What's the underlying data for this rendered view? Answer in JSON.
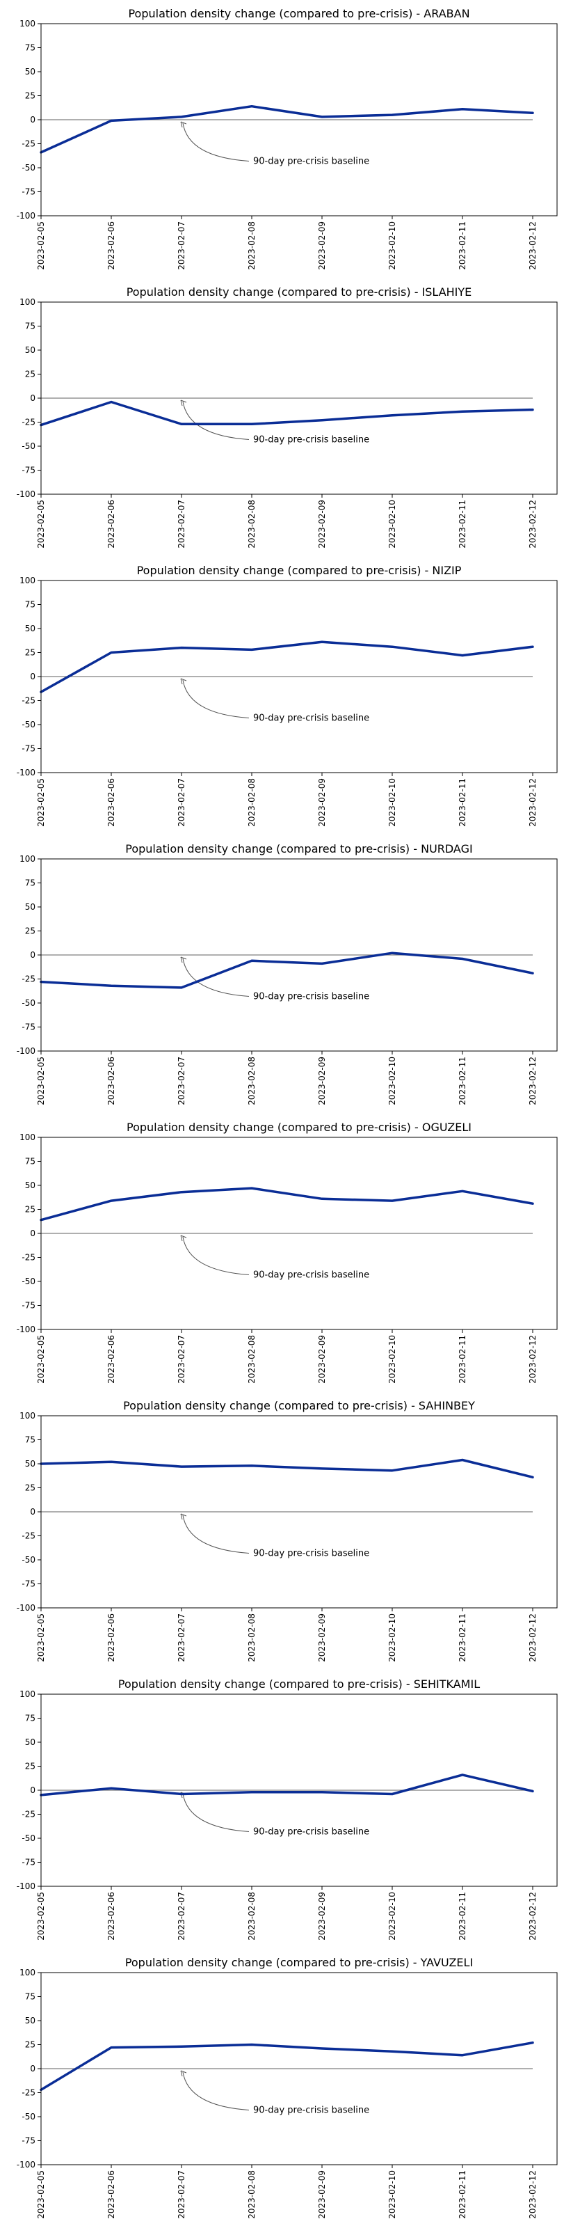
{
  "chart_data": [
    {
      "type": "line",
      "title": "Population density change (compared to pre-crisis) - ARABAN",
      "x": [
        "2023-02-05",
        "2023-02-06",
        "2023-02-07",
        "2023-02-08",
        "2023-02-09",
        "2023-02-10",
        "2023-02-11",
        "2023-02-12"
      ],
      "series": [
        {
          "values": [
            -34,
            -1,
            3,
            14,
            3,
            5,
            11,
            7
          ]
        }
      ],
      "ylim": [
        -100,
        100
      ],
      "yticks": [
        100,
        75,
        50,
        25,
        0,
        -25,
        -50,
        -75,
        -100
      ],
      "baseline": 0,
      "annotation": "90-day pre-crisis baseline",
      "annotation_x": "2023-02-07",
      "line_color": "#0a2d96"
    },
    {
      "type": "line",
      "title": "Population density change (compared to pre-crisis) - ISLAHIYE",
      "x": [
        "2023-02-05",
        "2023-02-06",
        "2023-02-07",
        "2023-02-08",
        "2023-02-09",
        "2023-02-10",
        "2023-02-11",
        "2023-02-12"
      ],
      "series": [
        {
          "values": [
            -28,
            -4,
            -27,
            -27,
            -23,
            -18,
            -14,
            -12
          ]
        }
      ],
      "ylim": [
        -100,
        100
      ],
      "yticks": [
        100,
        75,
        50,
        25,
        0,
        -25,
        -50,
        -75,
        -100
      ],
      "baseline": 0,
      "annotation": "90-day pre-crisis baseline",
      "annotation_x": "2023-02-07",
      "line_color": "#0a2d96"
    },
    {
      "type": "line",
      "title": "Population density change (compared to pre-crisis) - NIZIP",
      "x": [
        "2023-02-05",
        "2023-02-06",
        "2023-02-07",
        "2023-02-08",
        "2023-02-09",
        "2023-02-10",
        "2023-02-11",
        "2023-02-12"
      ],
      "series": [
        {
          "values": [
            -16,
            25,
            30,
            28,
            36,
            31,
            22,
            31
          ]
        }
      ],
      "ylim": [
        -100,
        100
      ],
      "yticks": [
        100,
        75,
        50,
        25,
        0,
        -25,
        -50,
        -75,
        -100
      ],
      "baseline": 0,
      "annotation": "90-day pre-crisis baseline",
      "annotation_x": "2023-02-07",
      "line_color": "#0a2d96"
    },
    {
      "type": "line",
      "title": "Population density change (compared to pre-crisis) - NURDAGI",
      "x": [
        "2023-02-05",
        "2023-02-06",
        "2023-02-07",
        "2023-02-08",
        "2023-02-09",
        "2023-02-10",
        "2023-02-11",
        "2023-02-12"
      ],
      "series": [
        {
          "values": [
            -28,
            -32,
            -34,
            -6,
            -9,
            2,
            -4,
            -19
          ]
        }
      ],
      "ylim": [
        -100,
        100
      ],
      "yticks": [
        100,
        75,
        50,
        25,
        0,
        -25,
        -50,
        -75,
        -100
      ],
      "baseline": 0,
      "annotation": "90-day pre-crisis baseline",
      "annotation_x": "2023-02-07",
      "line_color": "#0a2d96"
    },
    {
      "type": "line",
      "title": "Population density change (compared to pre-crisis) - OGUZELI",
      "x": [
        "2023-02-05",
        "2023-02-06",
        "2023-02-07",
        "2023-02-08",
        "2023-02-09",
        "2023-02-10",
        "2023-02-11",
        "2023-02-12"
      ],
      "series": [
        {
          "values": [
            14,
            34,
            43,
            47,
            36,
            34,
            44,
            31
          ]
        }
      ],
      "ylim": [
        -100,
        100
      ],
      "yticks": [
        100,
        75,
        50,
        25,
        0,
        -25,
        -50,
        -75,
        -100
      ],
      "baseline": 0,
      "annotation": "90-day pre-crisis baseline",
      "annotation_x": "2023-02-07",
      "line_color": "#0a2d96"
    },
    {
      "type": "line",
      "title": "Population density change (compared to pre-crisis) - SAHINBEY",
      "x": [
        "2023-02-05",
        "2023-02-06",
        "2023-02-07",
        "2023-02-08",
        "2023-02-09",
        "2023-02-10",
        "2023-02-11",
        "2023-02-12"
      ],
      "series": [
        {
          "values": [
            50,
            52,
            47,
            48,
            45,
            43,
            54,
            36
          ]
        }
      ],
      "ylim": [
        -100,
        100
      ],
      "yticks": [
        100,
        75,
        50,
        25,
        0,
        -25,
        -50,
        -75,
        -100
      ],
      "baseline": 0,
      "annotation": "90-day pre-crisis baseline",
      "annotation_x": "2023-02-07",
      "line_color": "#0a2d96"
    },
    {
      "type": "line",
      "title": "Population density change (compared to pre-crisis) - SEHITKAMIL",
      "x": [
        "2023-02-05",
        "2023-02-06",
        "2023-02-07",
        "2023-02-08",
        "2023-02-09",
        "2023-02-10",
        "2023-02-11",
        "2023-02-12"
      ],
      "series": [
        {
          "values": [
            -5,
            2,
            -4,
            -2,
            -2,
            -4,
            16,
            -1
          ]
        }
      ],
      "ylim": [
        -100,
        100
      ],
      "yticks": [
        100,
        75,
        50,
        25,
        0,
        -25,
        -50,
        -75,
        -100
      ],
      "baseline": 0,
      "annotation": "90-day pre-crisis baseline",
      "annotation_x": "2023-02-07",
      "line_color": "#0a2d96"
    },
    {
      "type": "line",
      "title": "Population density change (compared to pre-crisis) - YAVUZELI",
      "x": [
        "2023-02-05",
        "2023-02-06",
        "2023-02-07",
        "2023-02-08",
        "2023-02-09",
        "2023-02-10",
        "2023-02-11",
        "2023-02-12"
      ],
      "series": [
        {
          "values": [
            -22,
            22,
            23,
            25,
            21,
            18,
            14,
            27
          ]
        }
      ],
      "ylim": [
        -100,
        100
      ],
      "yticks": [
        100,
        75,
        50,
        25,
        0,
        -25,
        -50,
        -75,
        -100
      ],
      "baseline": 0,
      "annotation": "90-day pre-crisis baseline",
      "annotation_x": "2023-02-07",
      "line_color": "#0a2d96"
    }
  ]
}
